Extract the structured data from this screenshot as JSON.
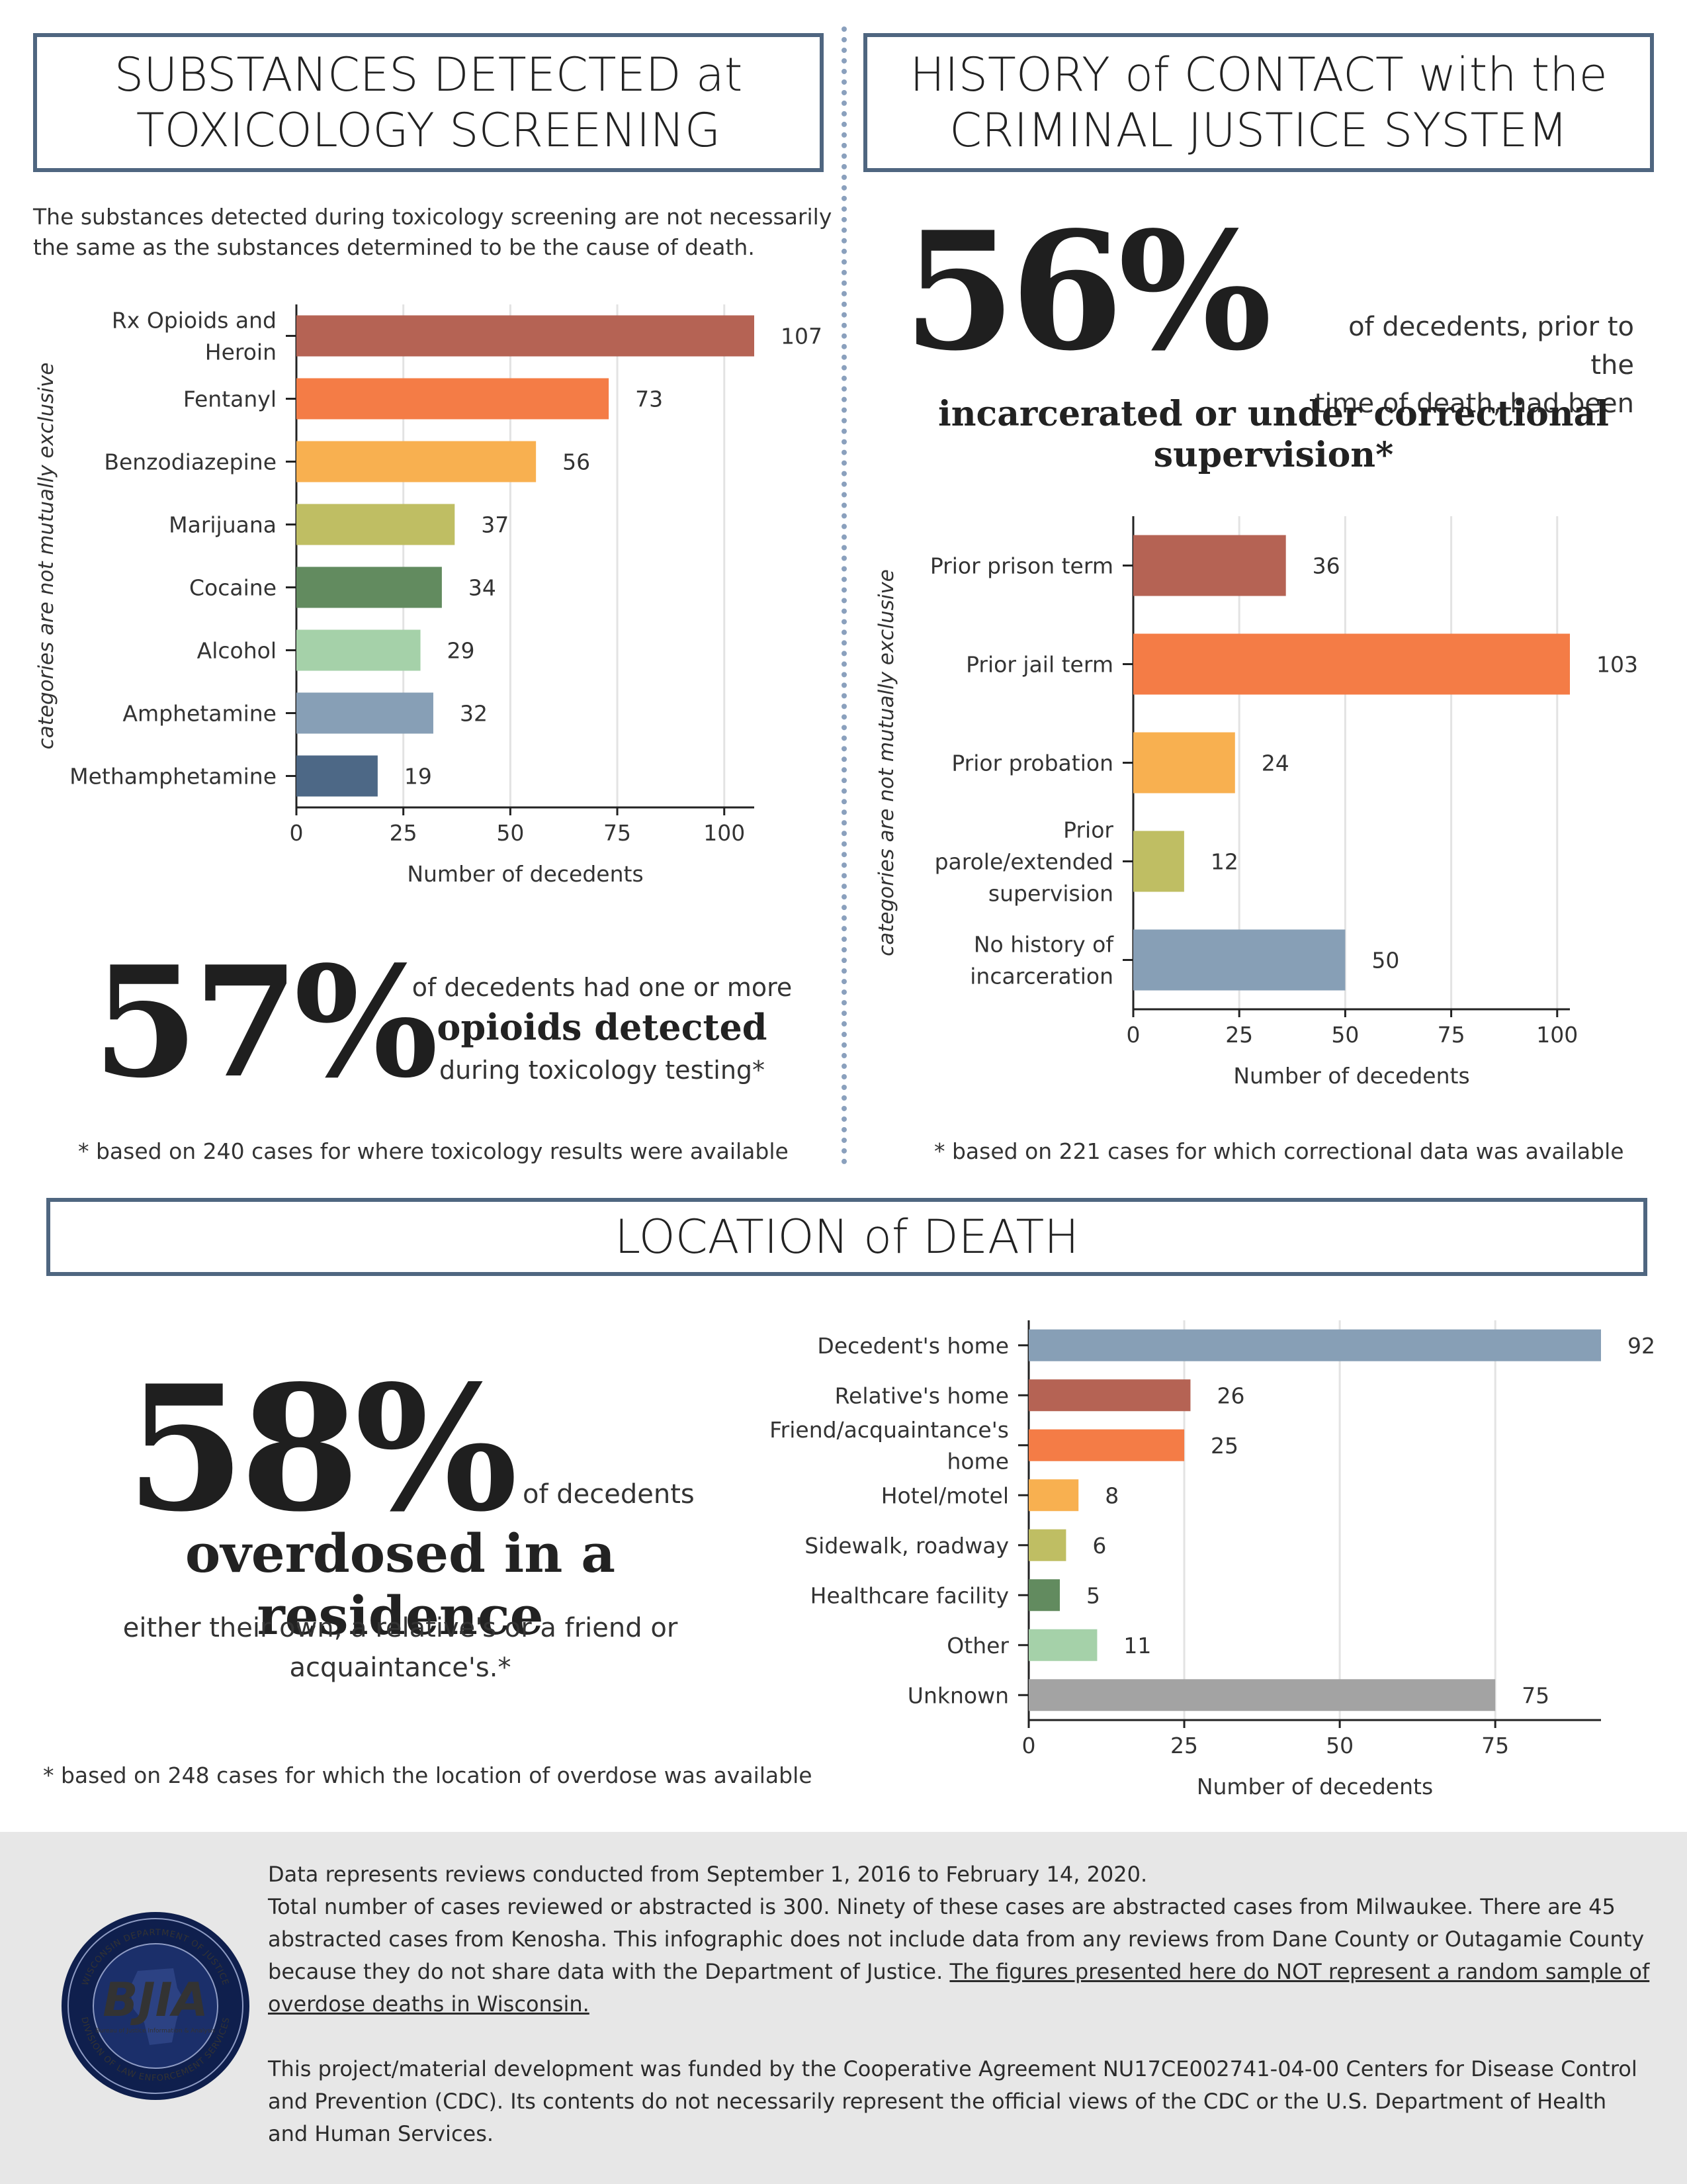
{
  "sections": {
    "toxicology": {
      "title": "SUBSTANCES DETECTED at\nTOXICOLOGY SCREENING",
      "intro": "The substances detected during toxicology screening are not necessarily\nthe same as the substances determined to be the cause of death.",
      "stat_value": "57%",
      "stat_line1": "of decedents had one or more",
      "stat_line2": "opioids detected",
      "stat_line3": "during toxicology testing*",
      "footnote": "* based on 240 cases for where toxicology results were available"
    },
    "criminal_justice": {
      "title": "HISTORY of CONTACT with the\nCRIMINAL JUSTICE SYSTEM",
      "stat_value": "56%",
      "stat_side": "of decedents, prior to the\ntime of death, had been",
      "stat_bold": "incarcerated or under correctional\nsupervision*",
      "footnote": "* based on 221 cases for which correctional data was available"
    },
    "location": {
      "title": "LOCATION of DEATH",
      "stat_value": "58%",
      "stat_side": "of decedents",
      "stat_bold": "overdosed in a residence",
      "stat_sub": "either their own, a relative's or a friend or\nacquaintance's.*",
      "footnote": "* based on 248 cases for which the location of overdose was available"
    }
  },
  "footer": {
    "logo_text": "BJIA",
    "logo_ring_top": "WISCONSIN DEPARTMENT OF JUSTICE",
    "logo_ring_bottom": "DIVISION OF LAW ENFORCEMENT SERVICES",
    "logo_sub": "Bureau of Justice Information & Analysis",
    "p1": "Data represents reviews conducted from September 1, 2016 to February 14, 2020.",
    "p2": "Total number of cases reviewed or abstracted is 300. Ninety of these cases are abstracted cases from Milwaukee. There are 45 abstracted  cases from Kenosha. This infographic does not include data from any reviews from Dane County or Outagamie County because they do not share data with the Department of Justice. ",
    "p2_underline": "The  figures presented here do NOT represent a random sample of overdose deaths in Wisconsin.",
    "p3": "This project/material development was funded by the Cooperative Agreement NU17CE002741-04-00 Centers for Disease Control and Prevention (CDC). Its contents do not necessarily represent the official views of the CDC or the U.S. Department of Health and Human Services."
  },
  "colors": {
    "frame": "#4f6680",
    "red": "#b56354",
    "orange": "#f47c46",
    "yellow": "#f8b050",
    "olive": "#bfbe63",
    "green": "#628b5f",
    "lightgreen": "#a5d1a9",
    "steel": "#879fb6",
    "navy": "#4d6886",
    "gray": "#a3a3a3"
  },
  "chart_data": [
    {
      "type": "bar",
      "orientation": "horizontal",
      "categories": [
        "Rx Opioids and Heroin",
        "Fentanyl",
        "Benzodiazepine",
        "Marijuana",
        "Cocaine",
        "Alcohol",
        "Amphetamine",
        "Methamphetamine"
      ],
      "values": [
        107,
        73,
        56,
        37,
        34,
        29,
        32,
        19
      ],
      "bar_colors": [
        "#b56354",
        "#f47c46",
        "#f8b050",
        "#bfbe63",
        "#628b5f",
        "#a5d1a9",
        "#879fb6",
        "#4d6886"
      ],
      "xlabel": "Number of decedents",
      "ylabel": "categories are not mutually exclusive",
      "xlim": [
        0,
        107
      ],
      "xticks": [
        0,
        25,
        50,
        75,
        100
      ],
      "grid": true
    },
    {
      "type": "bar",
      "orientation": "horizontal",
      "categories": [
        "Prior prison term",
        "Prior jail term",
        "Prior probation",
        "Prior parole/extended supervision",
        "No history of incarceration"
      ],
      "values": [
        36,
        103,
        24,
        12,
        50
      ],
      "bar_colors": [
        "#b56354",
        "#f47c46",
        "#f8b050",
        "#bfbe63",
        "#879fb6"
      ],
      "xlabel": "Number of decedents",
      "ylabel": "categories are not mutually exclusive",
      "xlim": [
        0,
        103
      ],
      "xticks": [
        0,
        25,
        50,
        75,
        100
      ],
      "grid": true
    },
    {
      "type": "bar",
      "orientation": "horizontal",
      "categories": [
        "Decedent's home",
        "Relative's home",
        "Friend/acquaintance's home",
        "Hotel/motel",
        "Sidewalk, roadway",
        "Healthcare facility",
        "Other",
        "Unknown"
      ],
      "values": [
        92,
        26,
        25,
        8,
        6,
        5,
        11,
        75
      ],
      "bar_colors": [
        "#879fb6",
        "#b56354",
        "#f47c46",
        "#f8b050",
        "#bfbe63",
        "#628b5f",
        "#a5d1a9",
        "#a3a3a3"
      ],
      "xlabel": "Number of decedents",
      "xlim": [
        0,
        92
      ],
      "xticks": [
        0,
        25,
        50,
        75
      ],
      "grid": true
    }
  ]
}
